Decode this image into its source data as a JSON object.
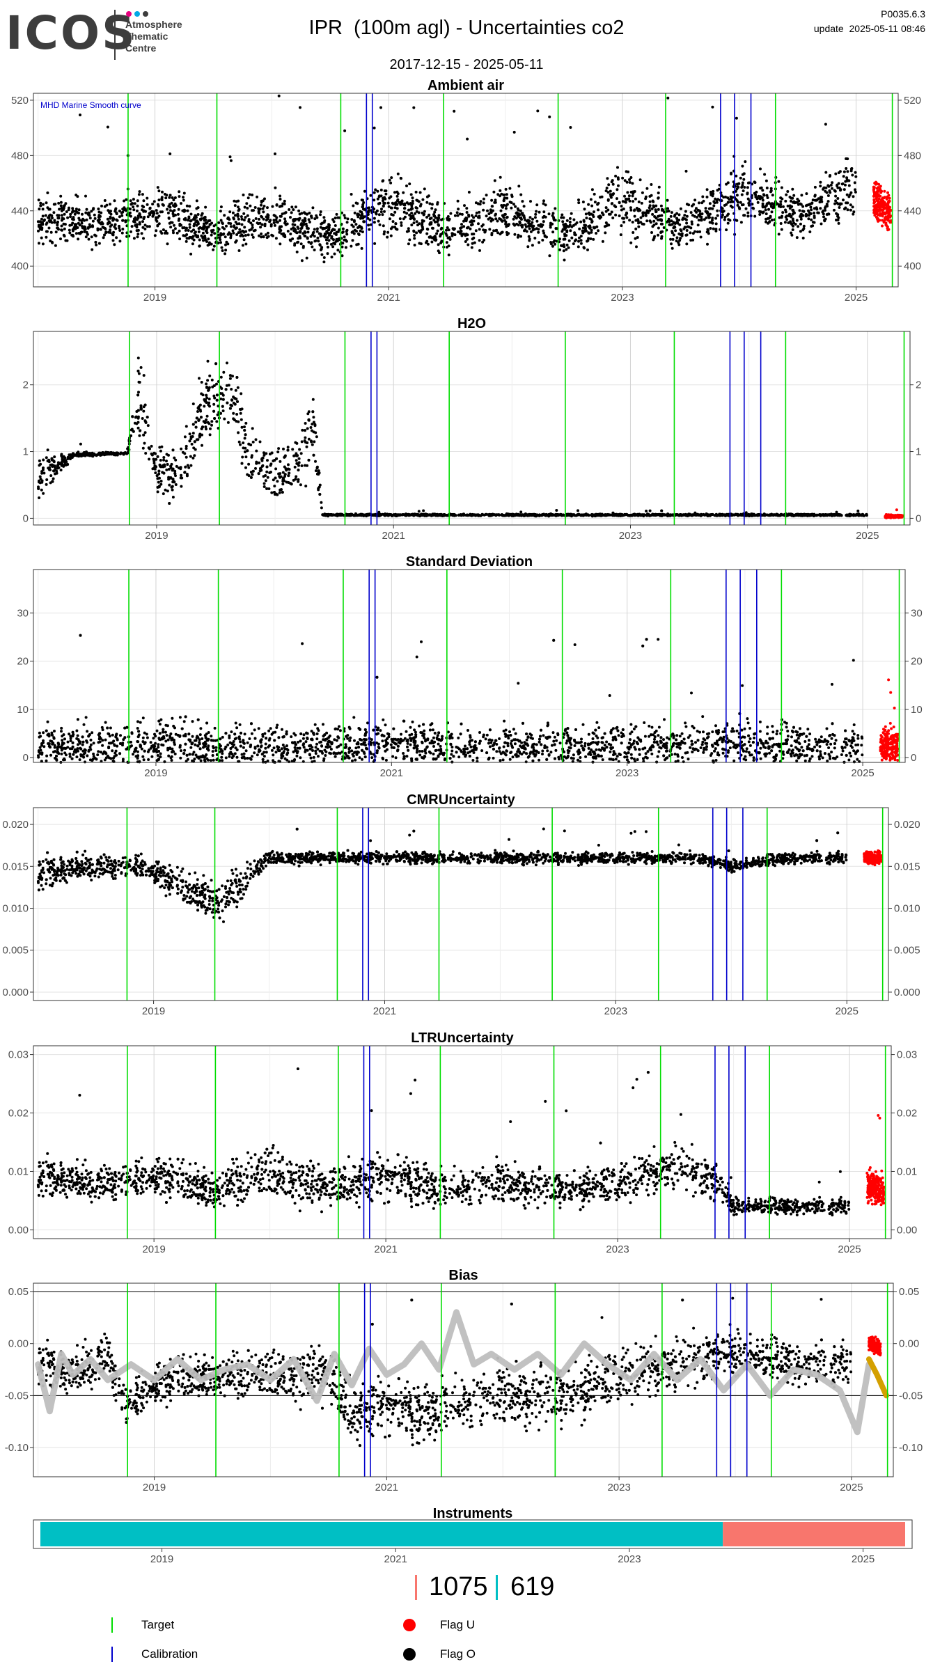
{
  "header": {
    "logo": "ICOS",
    "logo_lines": [
      "Atmosphere",
      "Thematic",
      "Centre"
    ],
    "title": "IPR  (100m agl) - Uncertainties co2",
    "version": "P0035.6.3",
    "update": "update  2025-05-11 08:46",
    "date_range": "2017-12-15 - 2025-05-11"
  },
  "colors": {
    "target": "#00dd00",
    "calibration": "#0000cc",
    "flag_u": "#ff0000",
    "flag_o": "#000000",
    "instrument_1": "#00bfc4",
    "instrument_2": "#f8766d",
    "smooth_curve": "#bebebe",
    "smooth_curve_recent": "#d4a000"
  },
  "chart_data": [
    {
      "type": "scatter",
      "title": "Ambient air",
      "x_range": [
        2017.96,
        2025.36
      ],
      "ylim": [
        385,
        525
      ],
      "y_ticks": [
        400,
        440,
        480,
        520
      ],
      "y_tick_labels": [
        "400",
        "440",
        "480",
        "520"
      ],
      "x_tick_labels": [
        "2019",
        "2021",
        "2023",
        "2025"
      ],
      "x_ticks": [
        2019,
        2021,
        2023,
        2025
      ],
      "annotation": "MHD Marine Smooth curve",
      "target_lines": [
        2018.77,
        2019.53,
        2020.59,
        2021.47,
        2022.45,
        2023.37,
        2025.31
      ],
      "calibration_lines": [
        2020.81,
        2020.86,
        2023.84,
        2023.96,
        2024.1
      ],
      "green_extra": [
        2024.31
      ],
      "series": [
        {
          "flag": "O",
          "x": [
            2018.0,
            2018.5,
            2019.0,
            2019.5,
            2020.0,
            2020.5,
            2021.0,
            2021.5,
            2022.0,
            2022.5,
            2023.0,
            2023.5,
            2024.0,
            2024.5,
            2025.0
          ],
          "y": [
            432,
            430,
            440,
            425,
            436,
            420,
            445,
            426,
            440,
            422,
            449,
            428,
            452,
            436,
            458
          ],
          "band": [
            25,
            22,
            28,
            22,
            28,
            22,
            32,
            24,
            28,
            22,
            34,
            24,
            32,
            24,
            30
          ]
        },
        {
          "flag": "U",
          "x": [
            2025.15,
            2025.2,
            2025.25,
            2025.3
          ],
          "y": [
            448,
            445,
            440,
            436
          ],
          "band": [
            18,
            20,
            18,
            16
          ]
        }
      ]
    },
    {
      "type": "scatter",
      "title": "H2O",
      "x_range": [
        2017.96,
        2025.36
      ],
      "ylim": [
        -0.1,
        2.8
      ],
      "y_ticks": [
        0,
        1,
        2
      ],
      "y_tick_labels": [
        "0",
        "1",
        "2"
      ],
      "x_tick_labels": [
        "2019",
        "2021",
        "2023",
        "2025"
      ],
      "x_ticks": [
        2019,
        2021,
        2023,
        2025
      ],
      "target_lines": [
        2018.77,
        2019.53,
        2020.59,
        2021.47,
        2022.45,
        2023.37,
        2025.31
      ],
      "calibration_lines": [
        2020.81,
        2020.86,
        2023.84,
        2023.96,
        2024.1
      ],
      "green_extra": [
        2024.31
      ],
      "series": [
        {
          "flag": "O",
          "x": [
            2018.0,
            2018.3,
            2018.6,
            2018.75,
            2018.85,
            2019.0,
            2019.2,
            2019.4,
            2019.6,
            2019.8,
            2020.0,
            2020.2,
            2020.32,
            2020.4,
            2021.0,
            2022.0,
            2023.0,
            2024.0,
            2025.0
          ],
          "y": [
            0.6,
            0.95,
            0.97,
            0.97,
            1.8,
            0.7,
            0.6,
            1.7,
            2.0,
            0.9,
            0.6,
            0.9,
            1.4,
            0.05,
            0.05,
            0.05,
            0.05,
            0.05,
            0.05
          ],
          "band": [
            0.5,
            0.05,
            0.03,
            0.03,
            1.0,
            0.6,
            0.5,
            0.9,
            0.8,
            0.6,
            0.5,
            0.6,
            0.8,
            0.02,
            0.02,
            0.02,
            0.02,
            0.02,
            0.02
          ]
        },
        {
          "flag": "U",
          "x": [
            2025.15,
            2025.3
          ],
          "y": [
            0.03,
            0.03
          ],
          "band": [
            0.03,
            0.03
          ]
        }
      ]
    },
    {
      "type": "scatter",
      "title": "Standard Deviation",
      "x_range": [
        2017.96,
        2025.36
      ],
      "ylim": [
        -1,
        39
      ],
      "y_ticks": [
        0,
        10,
        20,
        30
      ],
      "y_tick_labels": [
        "0",
        "10",
        "20",
        "30"
      ],
      "x_tick_labels": [
        "2019",
        "2021",
        "2023",
        "2025"
      ],
      "x_ticks": [
        2019,
        2021,
        2023,
        2025
      ],
      "target_lines": [
        2018.77,
        2019.53,
        2020.59,
        2021.47,
        2022.45,
        2023.37,
        2025.31
      ],
      "calibration_lines": [
        2020.81,
        2020.86,
        2023.84,
        2023.96,
        2024.1
      ],
      "green_extra": [
        2024.31
      ],
      "series": [
        {
          "flag": "O",
          "x": [
            2018.0,
            2019.0,
            2020.0,
            2021.0,
            2022.0,
            2023.0,
            2024.0,
            2025.0
          ],
          "y": [
            2,
            2.5,
            2,
            2.5,
            2,
            2.5,
            2.5,
            2
          ],
          "band": [
            6,
            8,
            6,
            7,
            6,
            7,
            7,
            6
          ]
        },
        {
          "flag": "U",
          "x": [
            2025.15,
            2025.3
          ],
          "y": [
            2.5,
            2.5
          ],
          "band": [
            5,
            5
          ]
        }
      ]
    },
    {
      "type": "scatter",
      "title": "CMRUncertainty",
      "x_range": [
        2017.96,
        2025.36
      ],
      "ylim": [
        -0.001,
        0.022
      ],
      "y_ticks": [
        0.0,
        0.005,
        0.01,
        0.015,
        0.02
      ],
      "y_tick_labels": [
        "0.000",
        "0.005",
        "0.010",
        "0.015",
        "0.020"
      ],
      "x_tick_labels": [
        "2019",
        "2021",
        "2023",
        "2025"
      ],
      "x_ticks": [
        2019,
        2021,
        2023,
        2025
      ],
      "target_lines": [
        2018.77,
        2019.53,
        2020.59,
        2021.47,
        2022.45,
        2023.37,
        2025.31
      ],
      "calibration_lines": [
        2020.81,
        2020.86,
        2023.84,
        2023.96,
        2024.1
      ],
      "green_extra": [
        2024.31
      ],
      "series": [
        {
          "flag": "O",
          "x": [
            2018.0,
            2018.4,
            2018.9,
            2019.3,
            2019.6,
            2020.0,
            2020.5,
            2021.0,
            2022.0,
            2023.0,
            2023.7,
            2024.0,
            2024.5,
            2025.0
          ],
          "y": [
            0.014,
            0.015,
            0.015,
            0.012,
            0.011,
            0.016,
            0.016,
            0.016,
            0.016,
            0.016,
            0.016,
            0.015,
            0.016,
            0.016
          ],
          "band": [
            0.003,
            0.002,
            0.002,
            0.003,
            0.004,
            0.001,
            0.001,
            0.001,
            0.001,
            0.001,
            0.001,
            0.001,
            0.001,
            0.001
          ]
        },
        {
          "flag": "U",
          "x": [
            2025.15,
            2025.3
          ],
          "y": [
            0.016,
            0.016
          ],
          "band": [
            0.001,
            0.001
          ]
        }
      ]
    },
    {
      "type": "scatter",
      "title": "LTRUncertainty",
      "x_range": [
        2017.96,
        2025.36
      ],
      "ylim": [
        -0.0015,
        0.0315
      ],
      "y_ticks": [
        0.0,
        0.01,
        0.02,
        0.03
      ],
      "y_tick_labels": [
        "0.00",
        "0.01",
        "0.02",
        "0.03"
      ],
      "x_tick_labels": [
        "2019",
        "2021",
        "2023",
        "2025"
      ],
      "x_ticks": [
        2019,
        2021,
        2023,
        2025
      ],
      "target_lines": [
        2018.77,
        2019.53,
        2020.59,
        2021.47,
        2022.45,
        2023.37,
        2025.31
      ],
      "calibration_lines": [
        2020.81,
        2020.86,
        2023.84,
        2023.96,
        2024.1
      ],
      "green_extra": [
        2024.31
      ],
      "series": [
        {
          "flag": "O",
          "x": [
            2018.0,
            2018.5,
            2019.0,
            2019.5,
            2020.0,
            2020.5,
            2021.0,
            2021.5,
            2022.0,
            2022.5,
            2023.0,
            2023.5,
            2023.85,
            2024.0,
            2024.5,
            2025.0
          ],
          "y": [
            0.009,
            0.008,
            0.009,
            0.007,
            0.01,
            0.007,
            0.009,
            0.007,
            0.008,
            0.007,
            0.008,
            0.011,
            0.008,
            0.004,
            0.004,
            0.004
          ],
          "band": [
            0.005,
            0.004,
            0.005,
            0.005,
            0.006,
            0.005,
            0.006,
            0.005,
            0.005,
            0.004,
            0.005,
            0.006,
            0.005,
            0.002,
            0.002,
            0.002
          ]
        },
        {
          "flag": "U",
          "x": [
            2025.15,
            2025.3
          ],
          "y": [
            0.008,
            0.006
          ],
          "band": [
            0.004,
            0.004
          ]
        }
      ]
    },
    {
      "type": "scatter",
      "title": "Bias",
      "x_range": [
        2017.96,
        2025.36
      ],
      "ylim": [
        -0.128,
        0.058
      ],
      "y_ticks": [
        -0.1,
        -0.05,
        0.0,
        0.05
      ],
      "y_tick_labels": [
        "-0.10",
        "-0.05",
        "0.00",
        "0.05"
      ],
      "x_tick_labels": [
        "2019",
        "2021",
        "2023",
        "2025"
      ],
      "x_ticks": [
        2019,
        2021,
        2023,
        2025
      ],
      "hlines": [
        0.05,
        -0.05
      ],
      "target_lines": [
        2018.77,
        2019.53,
        2020.59,
        2021.47,
        2022.45,
        2023.37,
        2025.31
      ],
      "calibration_lines": [
        2020.81,
        2020.86,
        2023.84,
        2023.96,
        2024.1
      ],
      "green_extra": [
        2024.31
      ],
      "series": [
        {
          "flag": "O",
          "x": [
            2018.0,
            2018.3,
            2018.6,
            2018.75,
            2019.0,
            2019.5,
            2020.0,
            2020.5,
            2020.7,
            2021.0,
            2021.3,
            2021.5,
            2022.0,
            2022.5,
            2023.0,
            2023.5,
            2024.0,
            2024.5,
            2025.0
          ],
          "y": [
            -0.02,
            -0.03,
            -0.01,
            -0.06,
            -0.04,
            -0.03,
            -0.03,
            -0.03,
            -0.07,
            -0.06,
            -0.07,
            -0.06,
            -0.05,
            -0.05,
            -0.03,
            -0.02,
            -0.01,
            -0.02,
            -0.02
          ],
          "band": [
            0.03,
            0.03,
            0.03,
            0.03,
            0.03,
            0.03,
            0.03,
            0.04,
            0.04,
            0.04,
            0.04,
            0.04,
            0.04,
            0.04,
            0.04,
            0.04,
            0.03,
            0.03,
            0.03
          ]
        },
        {
          "flag": "U",
          "x": [
            2025.15,
            2025.25
          ],
          "y": [
            0.0,
            -0.005
          ],
          "band": [
            0.01,
            0.01
          ]
        }
      ],
      "smooth_curve": {
        "x": [
          2018.0,
          2018.1,
          2018.2,
          2018.3,
          2018.45,
          2018.6,
          2018.8,
          2019.0,
          2019.2,
          2019.4,
          2019.6,
          2019.8,
          2020.0,
          2020.2,
          2020.4,
          2020.55,
          2020.7,
          2020.85,
          2021.0,
          2021.15,
          2021.3,
          2021.45,
          2021.6,
          2021.75,
          2021.9,
          2022.1,
          2022.3,
          2022.5,
          2022.7,
          2022.9,
          2023.1,
          2023.3,
          2023.5,
          2023.7,
          2023.9,
          2024.1,
          2024.3,
          2024.5,
          2024.7,
          2024.9,
          2025.05,
          2025.15
        ],
        "y": [
          -0.02,
          -0.065,
          -0.01,
          -0.03,
          -0.015,
          -0.035,
          -0.02,
          -0.035,
          -0.015,
          -0.035,
          -0.025,
          -0.02,
          -0.035,
          -0.015,
          -0.055,
          -0.01,
          -0.04,
          -0.005,
          -0.03,
          -0.02,
          0.0,
          -0.025,
          0.03,
          -0.02,
          -0.01,
          -0.025,
          -0.01,
          -0.03,
          0.0,
          -0.02,
          -0.035,
          -0.01,
          -0.035,
          -0.015,
          -0.045,
          -0.02,
          -0.05,
          -0.025,
          -0.03,
          -0.045,
          -0.085,
          -0.02
        ]
      },
      "smooth_curve_recent": {
        "x": [
          2025.15,
          2025.22,
          2025.3
        ],
        "y": [
          -0.015,
          -0.03,
          -0.05
        ]
      }
    }
  ],
  "instruments": {
    "title": "Instruments",
    "x_range": [
      2017.96,
      2025.36
    ],
    "x_tick_labels": [
      "2019",
      "2021",
      "2023",
      "2025"
    ],
    "x_ticks": [
      2019,
      2021,
      2023,
      2025
    ],
    "segments": [
      {
        "id": "619",
        "from": 2017.96,
        "to": 2023.8
      },
      {
        "id": "1075",
        "from": 2023.8,
        "to": 2025.36
      }
    ]
  },
  "counts": [
    "1075",
    "619"
  ],
  "legend": {
    "target": "Target",
    "calibration": "Calibration",
    "flag_u": "Flag U",
    "flag_o": "Flag O"
  }
}
